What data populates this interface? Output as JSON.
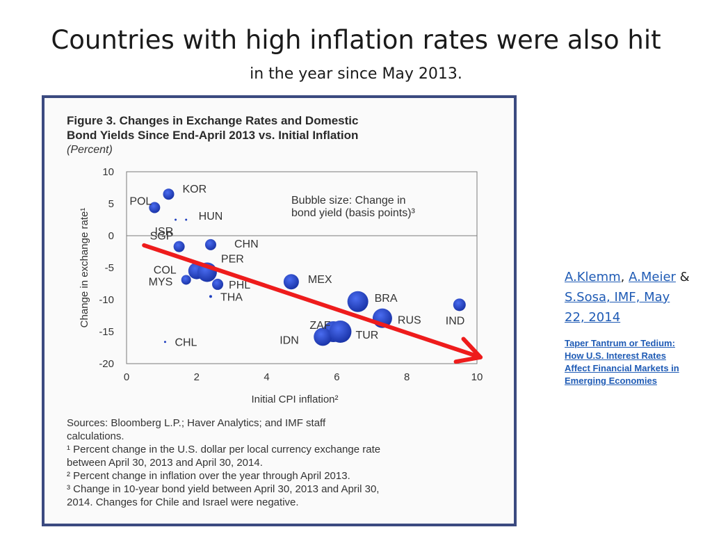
{
  "slide": {
    "title": "Countries with high inflation rates were also hit",
    "subtitle": "in the year since May 2013."
  },
  "chart_data": {
    "type": "scatter",
    "title_line1": "Figure 3. Changes in Exchange Rates and Domestic",
    "title_line2": "Bond Yields Since End-April 2013 vs. Initial Inflation",
    "unit": "(Percent)",
    "xlabel": "Initial CPI inflation²",
    "ylabel": "Change in exchange rate¹",
    "xlim": [
      0,
      10
    ],
    "ylim": [
      -20,
      10
    ],
    "xticks": [
      0,
      2,
      4,
      6,
      8,
      10
    ],
    "yticks": [
      10,
      5,
      0,
      -5,
      -10,
      -15,
      -20
    ],
    "grid": false,
    "annotation": "Bubble size: Change in",
    "annotation2": "bond yield (basis points)³",
    "points": [
      {
        "label": "POL",
        "x": 0.8,
        "y": 4.4,
        "size": 8
      },
      {
        "label": "KOR",
        "x": 1.2,
        "y": 6.5,
        "size": 8
      },
      {
        "label": "ISR",
        "x": 1.4,
        "y": 2.5,
        "size": 0.5
      },
      {
        "label": "HUN",
        "x": 1.7,
        "y": 2.5,
        "size": 1
      },
      {
        "label": "SGP",
        "x": 1.5,
        "y": -1.7,
        "size": 8
      },
      {
        "label": "CHN",
        "x": 2.4,
        "y": -1.4,
        "size": 8
      },
      {
        "label": "COL",
        "x": 2.0,
        "y": -5.5,
        "size": 12
      },
      {
        "label": "PER",
        "x": 2.3,
        "y": -5.7,
        "size": 14
      },
      {
        "label": "MYS",
        "x": 1.7,
        "y": -6.9,
        "size": 7
      },
      {
        "label": "PHL",
        "x": 2.6,
        "y": -7.6,
        "size": 8
      },
      {
        "label": "THA",
        "x": 2.4,
        "y": -9.5,
        "size": 2
      },
      {
        "label": "MEX",
        "x": 4.7,
        "y": -7.2,
        "size": 11
      },
      {
        "label": "BRA",
        "x": 6.6,
        "y": -10.3,
        "size": 15
      },
      {
        "label": "ZAF",
        "x": 5.9,
        "y": -15.0,
        "size": 15
      },
      {
        "label": "IDN",
        "x": 5.6,
        "y": -15.8,
        "size": 13
      },
      {
        "label": "TUR",
        "x": 6.1,
        "y": -15.0,
        "size": 16
      },
      {
        "label": "RUS",
        "x": 7.3,
        "y": -12.9,
        "size": 14
      },
      {
        "label": "IND",
        "x": 9.5,
        "y": -10.8,
        "size": 9
      },
      {
        "label": "CHL",
        "x": 1.1,
        "y": -16.6,
        "size": 1.5
      }
    ],
    "trend_arrow": {
      "x0": 0.5,
      "y0": -1.5,
      "x1": 10.1,
      "y1": -19.0
    },
    "notes": [
      "Sources: Bloomberg L.P.; Haver Analytics; and IMF staff",
      "calculations.",
      "¹ Percent change in the U.S. dollar per local currency exchange rate",
      "between April 30, 2013 and April 30, 2014.",
      "² Percent change in inflation over the year through April 2013.",
      "³ Change in 10-year  bond yield between April 30, 2013 and April 30,",
      "2014. Changes for Chile and Israel were negative."
    ],
    "colors": {
      "bubble": "#1f3fbf",
      "arrow": "#ee1c1c",
      "axis": "#7a7a7a"
    }
  },
  "sidebar": {
    "author1": "A.Klemm",
    "sep1": ", ",
    "author2": "A.Meier",
    "sep2": " & ",
    "author3": " S.Sosa",
    "org_date": ", IMF, May 22, 2014",
    "paper_title": "Taper Tantrum or Tedium: How U.S. Interest Rates Affect Financial Markets in Emerging Economies"
  }
}
